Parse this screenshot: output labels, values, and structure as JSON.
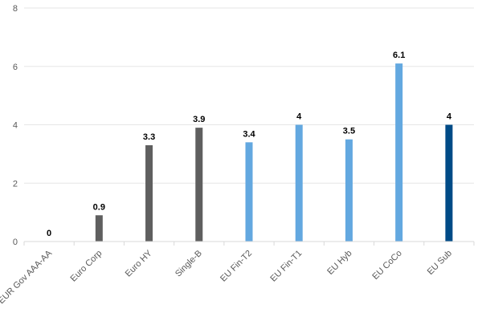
{
  "chart_data": {
    "type": "bar",
    "title": "",
    "xlabel": "",
    "ylabel": "",
    "ylim": [
      0,
      8
    ],
    "yticks": [
      "0",
      "2",
      "4",
      "6",
      "8"
    ],
    "grid": true,
    "legend": "none",
    "categories": [
      "EUR Gov AAA-AA",
      "Euro Corp",
      "Euro HY",
      "Single-B",
      "EU Fin-T2",
      "EU Fin-T1",
      "EU Hyb",
      "EU CoCo",
      "EU Sub"
    ],
    "values": [
      0,
      0.9,
      3.3,
      3.9,
      3.4,
      4,
      3.5,
      6.1,
      4
    ],
    "data_labels": [
      "0",
      "0.9",
      "3.3",
      "3.9",
      "3.4",
      "4",
      "3.5",
      "6.1",
      "4"
    ],
    "bar_colors": [
      "#5f5f5f",
      "#5f5f5f",
      "#5f5f5f",
      "#5f5f5f",
      "#63a8e0",
      "#63a8e0",
      "#63a8e0",
      "#63a8e0",
      "#004b87"
    ]
  }
}
